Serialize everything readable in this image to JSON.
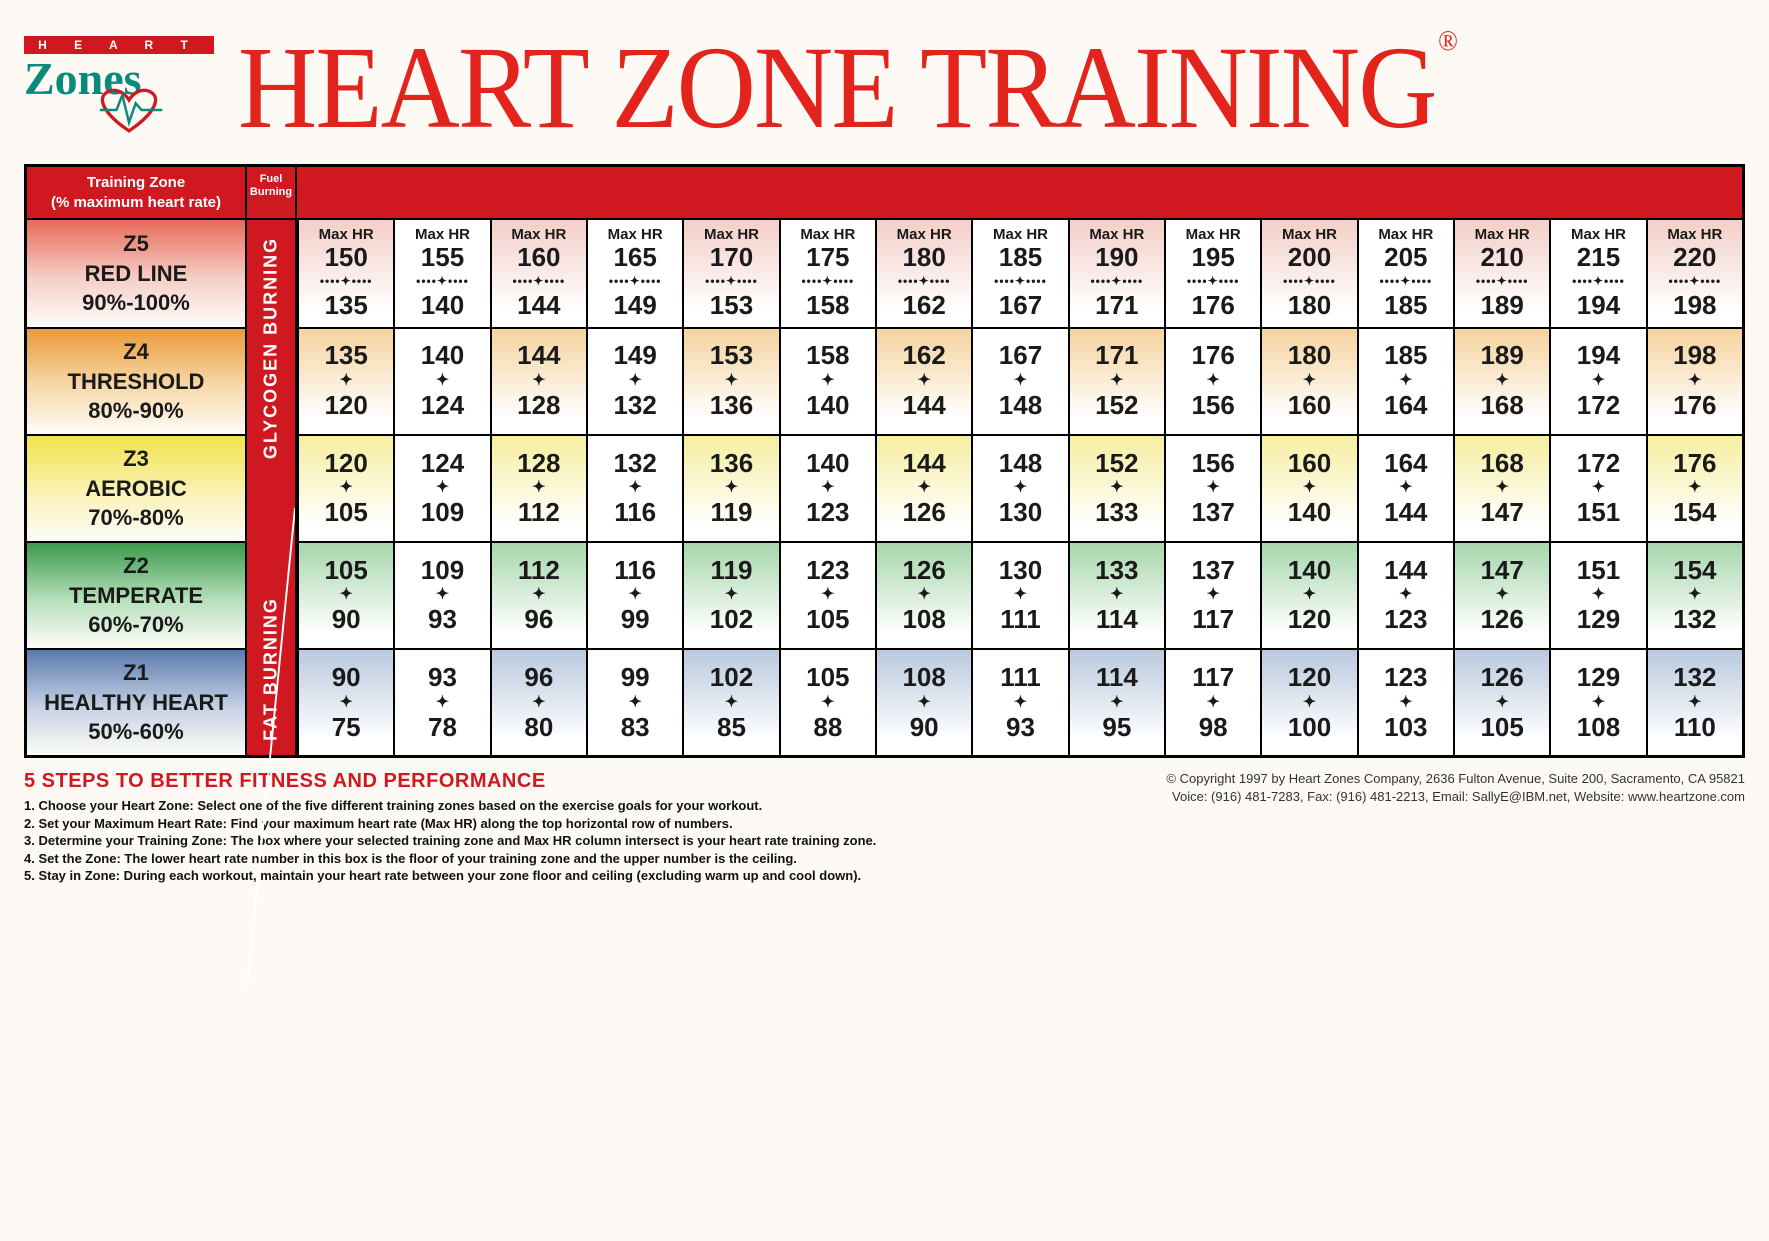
{
  "logo": {
    "topbar": "H E A R T",
    "script": "Zones"
  },
  "title": "HEART ZONE TRAINING",
  "trademark": "®",
  "headers": {
    "training_zone_l1": "Training Zone",
    "training_zone_l2": "(% maximum heart rate)",
    "fuel_l1": "Fuel",
    "fuel_l2": "Burning",
    "maxhr_label": "Max HR"
  },
  "fuel": {
    "glycogen": "GLYCOGEN BURNING",
    "fat": "FAT BURNING"
  },
  "max_hr_columns": [
    150,
    155,
    160,
    165,
    170,
    175,
    180,
    185,
    190,
    195,
    200,
    205,
    210,
    215,
    220
  ],
  "zones": [
    {
      "code": "Z5",
      "name": "RED LINE",
      "range": "90%-100%",
      "grad_top": "#e86a5a",
      "grad_mid": "#f5d0c8",
      "tint": "#f3cfc7",
      "upper": [
        150,
        155,
        160,
        165,
        170,
        175,
        180,
        185,
        190,
        195,
        200,
        205,
        210,
        215,
        220
      ],
      "lower": [
        135,
        140,
        144,
        149,
        153,
        158,
        162,
        167,
        171,
        176,
        180,
        185,
        189,
        194,
        198
      ],
      "is_top": true
    },
    {
      "code": "Z4",
      "name": "THRESHOLD",
      "range": "80%-90%",
      "grad_top": "#eb9a3a",
      "grad_mid": "#f7d9aa",
      "tint": "#f5d39e",
      "upper": [
        135,
        140,
        144,
        149,
        153,
        158,
        162,
        167,
        171,
        176,
        180,
        185,
        189,
        194,
        198
      ],
      "lower": [
        120,
        124,
        128,
        132,
        136,
        140,
        144,
        148,
        152,
        156,
        160,
        164,
        168,
        172,
        176
      ]
    },
    {
      "code": "Z3",
      "name": "AEROBIC",
      "range": "70%-80%",
      "grad_top": "#f2e24a",
      "grad_mid": "#faf2b8",
      "tint": "#f6eea0",
      "upper": [
        120,
        124,
        128,
        132,
        136,
        140,
        144,
        148,
        152,
        156,
        160,
        164,
        168,
        172,
        176
      ],
      "lower": [
        105,
        109,
        112,
        116,
        119,
        123,
        126,
        130,
        133,
        137,
        140,
        144,
        147,
        151,
        154
      ]
    },
    {
      "code": "Z2",
      "name": "TEMPERATE",
      "range": "60%-70%",
      "grad_top": "#3a9a4a",
      "grad_mid": "#b8e0bd",
      "tint": "#a6d6ab",
      "upper": [
        105,
        109,
        112,
        116,
        119,
        123,
        126,
        130,
        133,
        137,
        140,
        144,
        147,
        151,
        154
      ],
      "lower": [
        90,
        93,
        96,
        99,
        102,
        105,
        108,
        111,
        114,
        117,
        120,
        123,
        126,
        129,
        132
      ]
    },
    {
      "code": "Z1",
      "name": "HEALTHY HEART",
      "range": "50%-60%",
      "grad_top": "#5a7aae",
      "grad_mid": "#c6d2e4",
      "tint": "#b9c9de",
      "upper": [
        90,
        93,
        96,
        99,
        102,
        105,
        108,
        111,
        114,
        117,
        120,
        123,
        126,
        129,
        132
      ],
      "lower": [
        75,
        78,
        80,
        83,
        85,
        88,
        90,
        93,
        95,
        98,
        100,
        103,
        105,
        108,
        110
      ]
    }
  ],
  "colors": {
    "brand_red": "#d01820",
    "title_red": "#e2241d",
    "teal": "#0a8a7a",
    "page_bg": "#fdfaf5",
    "black": "#000000"
  },
  "steps": {
    "title": "5 STEPS TO BETTER FITNESS AND PERFORMANCE",
    "items": [
      "1. Choose your Heart Zone: Select one of the five different training zones based on the exercise goals for your workout.",
      "2. Set your Maximum Heart Rate: Find your maximum heart rate (Max HR) along the top horizontal row of numbers.",
      "3. Determine your Training Zone: The box where your selected training zone and Max HR column intersect is your heart rate training zone.",
      "4. Set the Zone: The lower heart rate number in this box is the floor of your training zone and the upper number is the ceiling.",
      "5. Stay in Zone: During each workout, maintain your heart rate between your zone floor and ceiling (excluding warm up and cool down)."
    ]
  },
  "copyright": {
    "line1": "© Copyright 1997 by Heart Zones Company, 2636 Fulton Avenue, Suite 200, Sacramento, CA 95821",
    "line2": "Voice: (916) 481-7283, Fax: (916) 481-2213, Email: SallyE@IBM.net, Website: www.heartzone.com"
  }
}
